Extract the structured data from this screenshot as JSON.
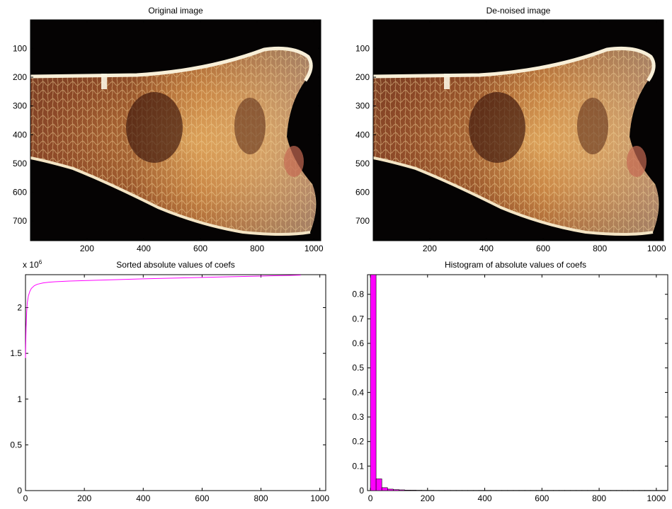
{
  "chart_data": [
    {
      "type": "image",
      "title": "Original image",
      "x_ticks": [
        200,
        400,
        600,
        800,
        1000
      ],
      "y_ticks": [
        100,
        200,
        300,
        400,
        500,
        600,
        700
      ],
      "xlim": [
        0.5,
        1024.5
      ],
      "ylim": [
        0.5,
        768.5
      ],
      "y_reversed": true,
      "grid": false
    },
    {
      "type": "image",
      "title": "De-noised image",
      "x_ticks": [
        200,
        400,
        600,
        800,
        1000
      ],
      "y_ticks": [
        100,
        200,
        300,
        400,
        500,
        600,
        700
      ],
      "xlim": [
        0.5,
        1024.5
      ],
      "ylim": [
        0.5,
        768.5
      ],
      "y_reversed": true,
      "grid": false
    },
    {
      "type": "line",
      "title": "Sorted absolute values of coefs",
      "y_exponent_label": "x 10",
      "y_exponent": "6",
      "color": "#ff00ff",
      "x_ticks": [
        0,
        200,
        400,
        600,
        800,
        1000
      ],
      "y_ticks": [
        0,
        0.5,
        1,
        1.5,
        2
      ],
      "xlim": [
        0,
        1020
      ],
      "ylim": [
        0,
        2.36
      ],
      "grid": false,
      "series": [
        {
          "x": [
            0,
            1,
            2,
            4,
            6,
            10,
            15,
            20,
            30,
            40,
            60,
            80,
            100,
            150,
            200,
            300,
            400,
            500,
            600,
            700,
            800,
            900,
            935
          ],
          "y": [
            1.45,
            1.62,
            1.78,
            1.95,
            2.05,
            2.13,
            2.18,
            2.21,
            2.24,
            2.255,
            2.27,
            2.278,
            2.283,
            2.29,
            2.295,
            2.305,
            2.315,
            2.322,
            2.33,
            2.338,
            2.345,
            2.352,
            2.355
          ]
        }
      ]
    },
    {
      "type": "bar",
      "title": "Histogram of absolute values of coefs",
      "color": "#ff00ff",
      "x_ticks": [
        0,
        200,
        400,
        600,
        800,
        1000
      ],
      "y_ticks": [
        0,
        0.1,
        0.2,
        0.3,
        0.4,
        0.5,
        0.6,
        0.7,
        0.8
      ],
      "xlim": [
        -10,
        1040
      ],
      "ylim": [
        0,
        0.88
      ],
      "grid": false,
      "bin_width": 20,
      "bin_start": 0,
      "values": [
        0.88,
        0.048,
        0.012,
        0.006,
        0.004,
        0.003,
        0.002,
        0.0018,
        0.0015,
        0.0013,
        0.0012,
        0.0011,
        0.001,
        0.001,
        0.001,
        0.001,
        0.001,
        0.001,
        0.001,
        0.001,
        0.001,
        0.001,
        0.001,
        0.001,
        0.001,
        0.001,
        0.001,
        0.001,
        0.001,
        0.001,
        0.001,
        0.001,
        0.001,
        0.001,
        0.001,
        0.001,
        0.001,
        0.001,
        0.001,
        0.001,
        0.001,
        0.001,
        0.001,
        0.001,
        0.001,
        0.001,
        0.001,
        0.001,
        0.001,
        0.001,
        0.001,
        0.001
      ]
    }
  ]
}
